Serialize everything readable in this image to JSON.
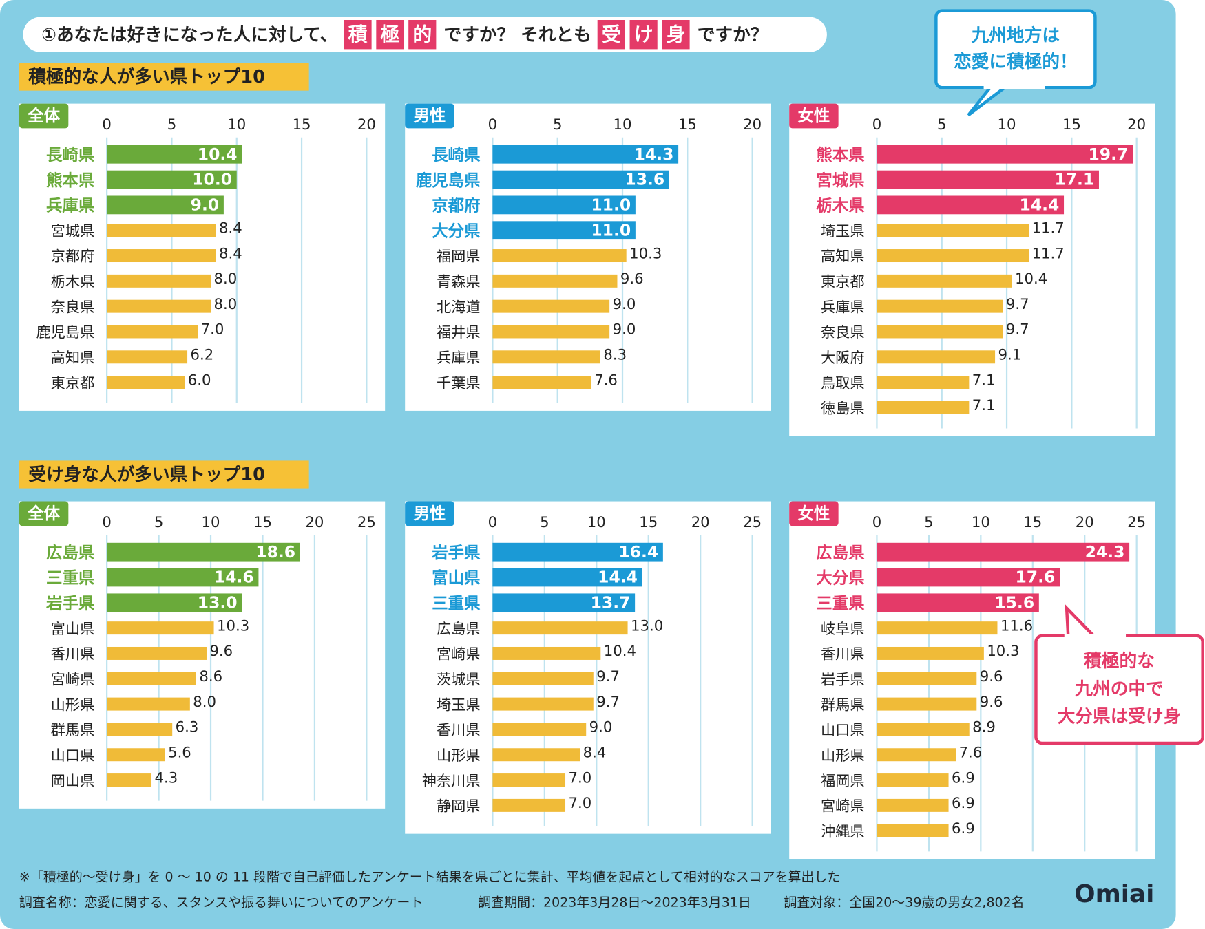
{
  "header": {
    "question": [
      {
        "text": "①あなたは好きになった人に対して、"
      },
      {
        "text": "積",
        "highlight": true
      },
      {
        "text": "極",
        "highlight": true
      },
      {
        "text": "的",
        "highlight": true
      },
      {
        "text": "ですか？ それとも"
      },
      {
        "text": "受",
        "highlight": true
      },
      {
        "text": "け",
        "highlight": true
      },
      {
        "text": "身",
        "highlight": true
      },
      {
        "text": "ですか？"
      }
    ]
  },
  "sections": [
    "積極的な人が多い県トップ10",
    "受け身な人が多い県トップ10"
  ],
  "callouts": [
    {
      "lines": [
        "九州地方は",
        "恋愛に積極的！"
      ],
      "color": "#1b9ad6"
    },
    {
      "lines": [
        "積極的な",
        "九州の中で",
        "大分県は受け身"
      ],
      "color": "#e43a68"
    }
  ],
  "footer": {
    "note": "※「積極的〜受け身」を 0 〜 10 の 11 段階で自己評価したアンケート結果を県ごとに集計、平均値を起点として相対的なスコアを算出した",
    "survey_name": "調査名称：恋愛に関する、スタンスや振る舞いについてのアンケート",
    "period": "調査期間：2023年3月28日〜2023年3月31日",
    "target": "調査対象：全国20〜39歳の男女2,802名",
    "logo": "Omiai"
  },
  "chart_data": [
    {
      "type": "bar",
      "title": "全体",
      "categories": [
        "長崎県",
        "熊本県",
        "兵庫県",
        "宮城県",
        "京都府",
        "栃木県",
        "奈良県",
        "鹿児島県",
        "高知県",
        "東京都"
      ],
      "values": [
        10.4,
        10.0,
        9.0,
        8.4,
        8.4,
        8.0,
        8.0,
        7.0,
        6.2,
        6.0
      ],
      "value_labels": [
        "10.4",
        "10.0",
        "9.0",
        "8.4",
        "8.4",
        "8.0",
        "8.0",
        "7.0",
        "6.2",
        "6.0"
      ],
      "xlim": [
        0,
        20
      ],
      "xticks": [
        0,
        5,
        10,
        15,
        20
      ],
      "color": "#f0bb38",
      "highlight_color": "#6aaa3a",
      "highlight_count": 3,
      "grid": true
    },
    {
      "type": "bar",
      "title": "男性",
      "categories": [
        "長崎県",
        "鹿児島県",
        "京都府",
        "大分県",
        "福岡県",
        "青森県",
        "北海道",
        "福井県",
        "兵庫県",
        "千葉県"
      ],
      "values": [
        14.3,
        13.6,
        11.0,
        11.0,
        10.3,
        9.6,
        9.0,
        9.0,
        8.3,
        7.6
      ],
      "value_labels": [
        "14.3",
        "13.6",
        "11.0",
        "11.0",
        "10.3",
        "9.6",
        "9.0",
        "9.0",
        "8.3",
        "7.6"
      ],
      "xlim": [
        0,
        20
      ],
      "xticks": [
        0,
        5,
        10,
        15,
        20
      ],
      "color": "#f0bb38",
      "highlight_color": "#1b9ad6",
      "highlight_count": 4,
      "grid": true
    },
    {
      "type": "bar",
      "title": "女性",
      "categories": [
        "熊本県",
        "宮城県",
        "栃木県",
        "埼玉県",
        "高知県",
        "東京都",
        "兵庫県",
        "奈良県",
        "大阪府",
        "鳥取県",
        "徳島県"
      ],
      "values": [
        19.7,
        17.1,
        14.4,
        11.7,
        11.7,
        10.4,
        9.7,
        9.7,
        9.1,
        7.1,
        7.1
      ],
      "value_labels": [
        "19.7",
        "17.1",
        "14.4",
        "11.7",
        "11.7",
        "10.4",
        "9.7",
        "9.7",
        "9.1",
        "7.1",
        "7.1"
      ],
      "xlim": [
        0,
        20
      ],
      "xticks": [
        0,
        5,
        10,
        15,
        20
      ],
      "color": "#f0bb38",
      "highlight_color": "#e43a68",
      "highlight_count": 3,
      "grid": true
    },
    {
      "type": "bar",
      "title": "全体",
      "categories": [
        "広島県",
        "三重県",
        "岩手県",
        "富山県",
        "香川県",
        "宮崎県",
        "山形県",
        "群馬県",
        "山口県",
        "岡山県"
      ],
      "values": [
        18.6,
        14.6,
        13.0,
        10.3,
        9.6,
        8.6,
        8.0,
        6.3,
        5.6,
        4.3
      ],
      "value_labels": [
        "18.6",
        "14.6",
        "13.0",
        "10.3",
        "9.6",
        "8.6",
        "8.0",
        "6.3",
        "5.6",
        "4.3"
      ],
      "xlim": [
        0,
        25
      ],
      "xticks": [
        0,
        5,
        10,
        15,
        20,
        25
      ],
      "color": "#f0bb38",
      "highlight_color": "#6aaa3a",
      "highlight_count": 3,
      "grid": true
    },
    {
      "type": "bar",
      "title": "男性",
      "categories": [
        "岩手県",
        "富山県",
        "三重県",
        "広島県",
        "宮崎県",
        "茨城県",
        "埼玉県",
        "香川県",
        "山形県",
        "神奈川県",
        "静岡県"
      ],
      "values": [
        16.4,
        14.4,
        13.7,
        13.0,
        10.4,
        9.7,
        9.7,
        9.0,
        8.4,
        7.0,
        7.0
      ],
      "value_labels": [
        "16.4",
        "14.4",
        "13.7",
        "13.0",
        "10.4",
        "9.7",
        "9.7",
        "9.0",
        "8.4",
        "7.0",
        "7.0"
      ],
      "xlim": [
        0,
        25
      ],
      "xticks": [
        0,
        5,
        10,
        15,
        20,
        25
      ],
      "color": "#f0bb38",
      "highlight_color": "#1b9ad6",
      "highlight_count": 3,
      "grid": true
    },
    {
      "type": "bar",
      "title": "女性",
      "categories": [
        "広島県",
        "大分県",
        "三重県",
        "岐阜県",
        "香川県",
        "岩手県",
        "群馬県",
        "山口県",
        "山形県",
        "福岡県",
        "宮崎県",
        "沖縄県"
      ],
      "values": [
        24.3,
        17.6,
        15.6,
        11.6,
        10.3,
        9.6,
        9.6,
        8.9,
        7.6,
        6.9,
        6.9,
        6.9
      ],
      "value_labels": [
        "24.3",
        "17.6",
        "15.6",
        "11.6",
        "10.3",
        "9.6",
        "9.6",
        "8.9",
        "7.6",
        "6.9",
        "6.9",
        "6.9"
      ],
      "xlim": [
        0,
        25
      ],
      "xticks": [
        0,
        5,
        10,
        15,
        20,
        25
      ],
      "color": "#f0bb38",
      "highlight_color": "#e43a68",
      "highlight_count": 3,
      "grid": true
    }
  ]
}
